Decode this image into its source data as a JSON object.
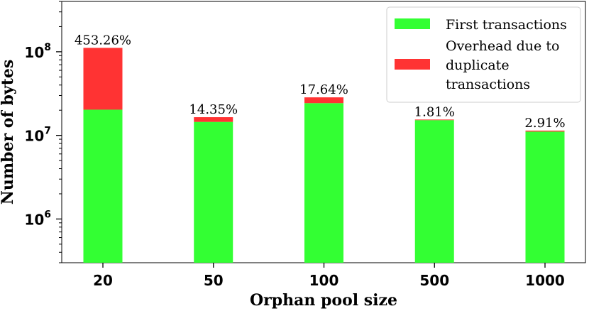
{
  "chart_data": {
    "type": "bar",
    "stacked": true,
    "yscale": "log",
    "ylim": [
      300000,
      400000000
    ],
    "categories": [
      "20",
      "50",
      "100",
      "500",
      "1000"
    ],
    "xlabel": "Orphan pool size",
    "ylabel": "Number of bytes",
    "y_ticks": [
      {
        "value": 1000000,
        "base": "10",
        "exp": "6"
      },
      {
        "value": 10000000,
        "base": "10",
        "exp": "7"
      },
      {
        "value": 100000000,
        "base": "10",
        "exp": "8"
      }
    ],
    "series": [
      {
        "name": "First transactions",
        "color": "#33ff33",
        "values": [
          20000000,
          14200000,
          24000000,
          14900000,
          10800000
        ]
      },
      {
        "name": "Overhead due to duplicate transactions",
        "color": "#ff3333",
        "values": [
          91000000,
          2000000,
          4200000,
          270000,
          310000
        ]
      }
    ],
    "data_labels": [
      "453.26%",
      "14.35%",
      "17.64%",
      "1.81%",
      "2.91%"
    ],
    "legend": {
      "position": "top-right",
      "entries": [
        {
          "lines": [
            "First transactions"
          ],
          "color": "#33ff33"
        },
        {
          "lines": [
            "Overhead due to",
            "duplicate",
            "transactions"
          ],
          "color": "#ff3333"
        }
      ]
    }
  }
}
